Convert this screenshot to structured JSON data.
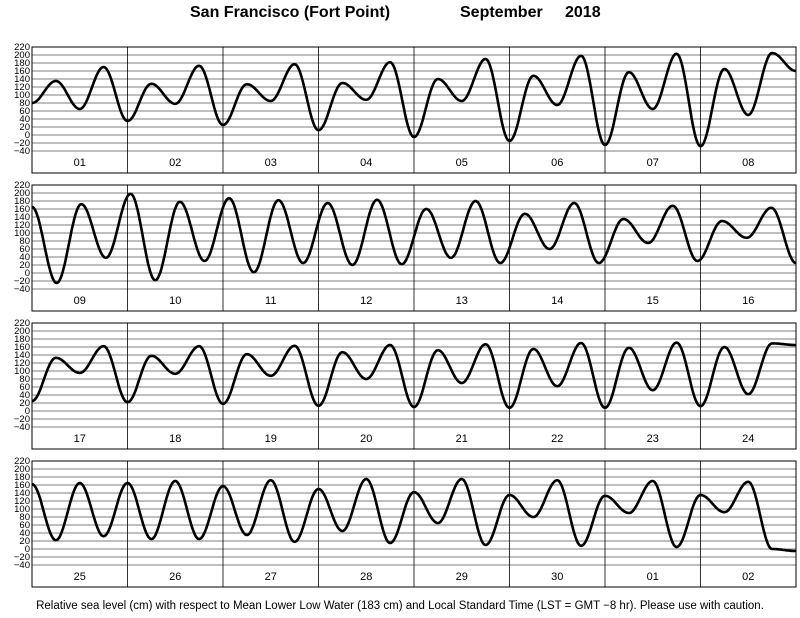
{
  "title": {
    "station": "San Francisco (Fort Point)",
    "month": "September",
    "year": "2018"
  },
  "footnote": "Relative sea level (cm) with respect to Mean Lower Low Water (183 cm) and Local Standard Time (LST = GMT −8 hr). Please use with caution.",
  "chart_data": [
    {
      "type": "line",
      "days": [
        "01",
        "02",
        "03",
        "04",
        "05",
        "06",
        "07",
        "08"
      ],
      "extrema": [
        80,
        135,
        65,
        170,
        35,
        128,
        78,
        173,
        25,
        127,
        85,
        177,
        12,
        130,
        88,
        182,
        -5,
        140,
        85,
        190,
        -15,
        148,
        75,
        198,
        -25,
        157,
        65,
        203,
        -28,
        165,
        50,
        205,
        160
      ],
      "ylim": [
        -40,
        220
      ],
      "yticks": [
        -40,
        -20,
        0,
        20,
        40,
        60,
        80,
        100,
        120,
        140,
        160,
        180,
        200,
        220
      ],
      "grid": true
    },
    {
      "type": "line",
      "days": [
        "09",
        "10",
        "11",
        "12",
        "13",
        "14",
        "15",
        "16"
      ],
      "extrema": [
        165,
        -25,
        172,
        38,
        198,
        -18,
        178,
        30,
        187,
        2,
        182,
        25,
        175,
        20,
        183,
        22,
        160,
        38,
        180,
        25,
        148,
        60,
        175,
        25,
        135,
        75,
        168,
        30,
        130,
        88,
        163,
        25
      ],
      "ylim": [
        -40,
        220
      ],
      "yticks": [
        -40,
        -20,
        0,
        20,
        40,
        60,
        80,
        100,
        120,
        140,
        160,
        180,
        200,
        220
      ],
      "grid": true
    },
    {
      "type": "line",
      "days": [
        "17",
        "18",
        "19",
        "20",
        "21",
        "22",
        "23",
        "24"
      ],
      "extrema": [
        25,
        133,
        95,
        162,
        22,
        138,
        93,
        162,
        18,
        142,
        88,
        163,
        13,
        147,
        80,
        165,
        10,
        152,
        70,
        167,
        8,
        155,
        62,
        170,
        8,
        158,
        52,
        171,
        12,
        160,
        42,
        169,
        165
      ],
      "ylim": [
        -40,
        220
      ],
      "yticks": [
        -40,
        -20,
        0,
        20,
        40,
        60,
        80,
        100,
        120,
        140,
        160,
        180,
        200,
        220
      ],
      "grid": true
    },
    {
      "type": "line",
      "days": [
        "25",
        "26",
        "27",
        "28",
        "29",
        "30",
        "01",
        "02"
      ],
      "extrema": [
        162,
        22,
        165,
        32,
        165,
        25,
        170,
        25,
        157,
        35,
        172,
        18,
        150,
        45,
        175,
        15,
        142,
        65,
        175,
        10,
        135,
        80,
        172,
        8,
        133,
        90,
        170,
        5,
        135,
        92,
        168,
        0,
        -5
      ],
      "ylim": [
        -40,
        220
      ],
      "yticks": [
        -40,
        -20,
        0,
        20,
        40,
        60,
        80,
        100,
        120,
        140,
        160,
        180,
        200,
        220
      ],
      "grid": true
    }
  ]
}
